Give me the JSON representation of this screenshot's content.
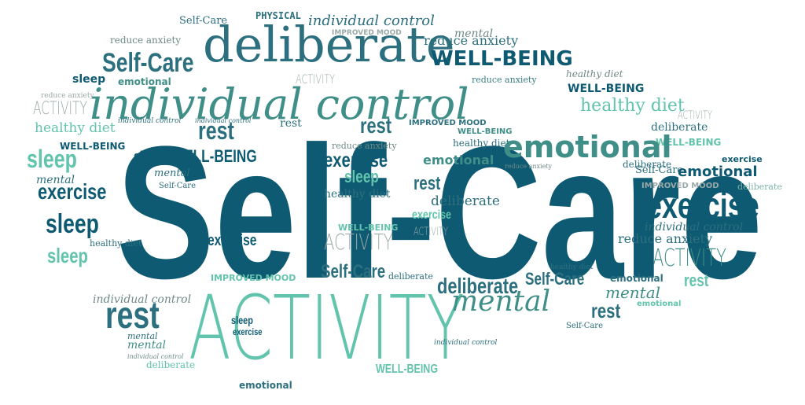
{
  "words": {
    "self_care": "Self-Care",
    "deliberate": "deliberate",
    "individual_control": "individual control",
    "well_being": "WELL-BEING",
    "physical": "PHYSICAL",
    "activity": "ACTIVITY",
    "improved_mood": "IMPROVED MOOD",
    "reduce_anxiety": "reduce anxiety",
    "healthy_diet": "healthy diet",
    "emotional": "emotional",
    "exercise": "exercise",
    "sleep": "sleep",
    "rest": "rest",
    "mental": "mental"
  },
  "colors": {
    "dark_teal": "#0e5a72",
    "slate_teal": "#2c6f7e",
    "green_teal": "#3f8f88",
    "mint": "#62c4ac",
    "grey": "#9aaaa8"
  }
}
